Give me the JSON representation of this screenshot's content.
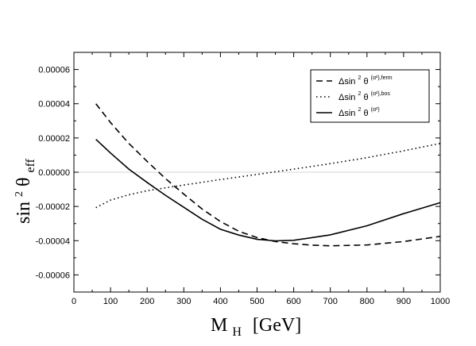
{
  "chart_data": {
    "type": "line",
    "xlabel": {
      "main": "M",
      "sub": "H",
      "unit": "[GeV]"
    },
    "ylabel": {
      "main": "sin",
      "sup": "2",
      "theta": "θ",
      "sub": "eff"
    },
    "xlim": [
      0,
      1000
    ],
    "ylim": [
      -7e-05,
      7e-05
    ],
    "x_ticks": [
      0,
      100,
      200,
      300,
      400,
      500,
      600,
      700,
      800,
      900,
      1000
    ],
    "x_tick_labels": [
      "0",
      "100",
      "200",
      "300",
      "400",
      "500",
      "600",
      "700",
      "800",
      "900",
      "1000"
    ],
    "y_ticks": [
      -6e-05,
      -4e-05,
      -2e-05,
      0,
      2e-05,
      4e-05,
      6e-05
    ],
    "y_tick_labels": [
      "-0.00006",
      "-0.00004",
      "-0.00002",
      "0.00000",
      "0.00002",
      "0.00004",
      "0.00006"
    ],
    "zero_line": true,
    "grid": false,
    "legend_position": "top-right",
    "series": [
      {
        "key": "ferm",
        "legend": {
          "prefix": "Δsin",
          "sup1": "2",
          "theta": "θ",
          "sup2": "(α²),ferm"
        },
        "style": "dashed",
        "x": [
          60,
          100,
          150,
          200,
          250,
          300,
          350,
          400,
          450,
          500,
          550,
          600,
          650,
          700,
          800,
          900,
          1000
        ],
        "y": [
          4e-05,
          2.9e-05,
          1.68e-05,
          6.3e-06,
          -3.7e-06,
          -1.28e-05,
          -2.15e-05,
          -2.88e-05,
          -3.45e-05,
          -3.82e-05,
          -4.05e-05,
          -4.18e-05,
          -4.26e-05,
          -4.3e-05,
          -4.25e-05,
          -4.05e-05,
          -3.75e-05
        ]
      },
      {
        "key": "bos",
        "legend": {
          "prefix": "Δsin",
          "sup1": "2",
          "theta": "θ",
          "sup2": "(α²),bos"
        },
        "style": "dotted",
        "x": [
          60,
          100,
          150,
          200,
          300,
          400,
          500,
          600,
          700,
          800,
          900,
          1000
        ],
        "y": [
          -2.07e-05,
          -1.63e-05,
          -1.32e-05,
          -1.08e-05,
          -7.5e-06,
          -4.3e-06,
          -1.3e-06,
          1.8e-06,
          5e-06,
          8.5e-06,
          1.25e-05,
          1.68e-05
        ]
      },
      {
        "key": "total",
        "legend": {
          "prefix": "Δsin",
          "sup1": "2",
          "theta": "θ",
          "sup2": "(α²)"
        },
        "style": "solid",
        "x": [
          60,
          100,
          150,
          200,
          250,
          300,
          350,
          400,
          450,
          500,
          550,
          600,
          700,
          800,
          900,
          1000
        ],
        "y": [
          1.92e-05,
          1.12e-05,
          1.8e-06,
          -6e-06,
          -1.35e-05,
          -2.05e-05,
          -2.75e-05,
          -3.33e-05,
          -3.67e-05,
          -3.92e-05,
          -4.01e-05,
          -3.98e-05,
          -3.66e-05,
          -3.13e-05,
          -2.42e-05,
          -1.78e-05
        ]
      }
    ]
  }
}
